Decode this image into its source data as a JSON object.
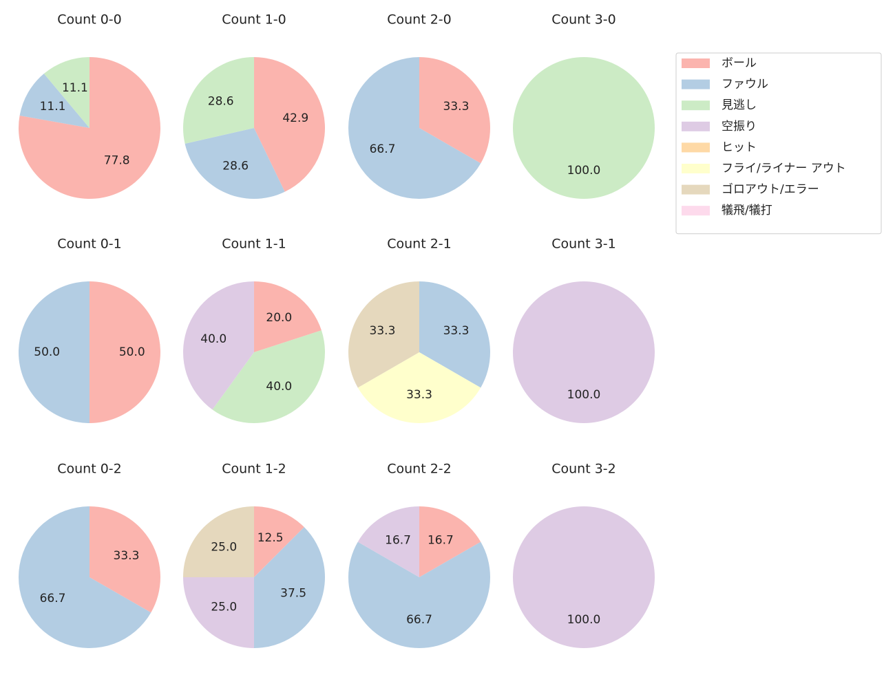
{
  "chart_data": [
    {
      "type": "pie",
      "title": "Count 0-0",
      "values": [
        77.8,
        11.1,
        11.1
      ],
      "value_labels": [
        "77.8",
        "11.1",
        "11.1"
      ],
      "colors": [
        "#fbb4ae",
        "#b3cde3",
        "#ccebc5"
      ]
    },
    {
      "type": "pie",
      "title": "Count 1-0",
      "values": [
        42.9,
        28.6,
        28.6
      ],
      "value_labels": [
        "42.9",
        "28.6",
        "28.6"
      ],
      "colors": [
        "#fbb4ae",
        "#b3cde3",
        "#ccebc5"
      ]
    },
    {
      "type": "pie",
      "title": "Count 2-0",
      "values": [
        33.3,
        66.7
      ],
      "value_labels": [
        "33.3",
        "66.7"
      ],
      "colors": [
        "#fbb4ae",
        "#b3cde3"
      ]
    },
    {
      "type": "pie",
      "title": "Count 3-0",
      "values": [
        100
      ],
      "value_labels": [
        "100.0"
      ],
      "colors": [
        "#ccebc5"
      ]
    },
    {
      "type": "pie",
      "title": "Count 0-1",
      "values": [
        50,
        50
      ],
      "value_labels": [
        "50.0",
        "50.0"
      ],
      "colors": [
        "#fbb4ae",
        "#b3cde3"
      ]
    },
    {
      "type": "pie",
      "title": "Count 1-1",
      "values": [
        20,
        40,
        40
      ],
      "value_labels": [
        "20.0",
        "40.0",
        "40.0"
      ],
      "colors": [
        "#fbb4ae",
        "#ccebc5",
        "#decbe4"
      ]
    },
    {
      "type": "pie",
      "title": "Count 2-1",
      "values": [
        33.3,
        33.3,
        33.3
      ],
      "value_labels": [
        "33.3",
        "33.3",
        "33.3"
      ],
      "colors": [
        "#b3cde3",
        "#ffffcc",
        "#e5d8bd"
      ]
    },
    {
      "type": "pie",
      "title": "Count 3-1",
      "values": [
        100
      ],
      "value_labels": [
        "100.0"
      ],
      "colors": [
        "#decbe4"
      ]
    },
    {
      "type": "pie",
      "title": "Count 0-2",
      "values": [
        33.3,
        66.7
      ],
      "value_labels": [
        "33.3",
        "66.7"
      ],
      "colors": [
        "#fbb4ae",
        "#b3cde3"
      ]
    },
    {
      "type": "pie",
      "title": "Count 1-2",
      "values": [
        12.5,
        37.5,
        25,
        25
      ],
      "value_labels": [
        "12.5",
        "37.5",
        "25.0",
        "25.0"
      ],
      "colors": [
        "#fbb4ae",
        "#b3cde3",
        "#decbe4",
        "#e5d8bd"
      ]
    },
    {
      "type": "pie",
      "title": "Count 2-2",
      "values": [
        16.7,
        66.7,
        16.7
      ],
      "value_labels": [
        "16.7",
        "66.7",
        "16.7"
      ],
      "colors": [
        "#fbb4ae",
        "#b3cde3",
        "#decbe4"
      ]
    },
    {
      "type": "pie",
      "title": "Count 3-2",
      "values": [
        100
      ],
      "value_labels": [
        "100.0"
      ],
      "colors": [
        "#decbe4"
      ]
    }
  ],
  "legend": {
    "position": "upper right",
    "entries": [
      {
        "name": "ボール",
        "color": "#fbb4ae"
      },
      {
        "name": "ファウル",
        "color": "#b3cde3"
      },
      {
        "name": "見逃し",
        "color": "#ccebc5"
      },
      {
        "name": "空振り",
        "color": "#decbe4"
      },
      {
        "name": "ヒット",
        "color": "#fed9a6"
      },
      {
        "name": "フライ/ライナー アウト",
        "color": "#ffffcc"
      },
      {
        "name": "ゴロアウト/エラー",
        "color": "#e5d8bd"
      },
      {
        "name": "犠飛/犠打",
        "color": "#fddaec"
      }
    ]
  }
}
